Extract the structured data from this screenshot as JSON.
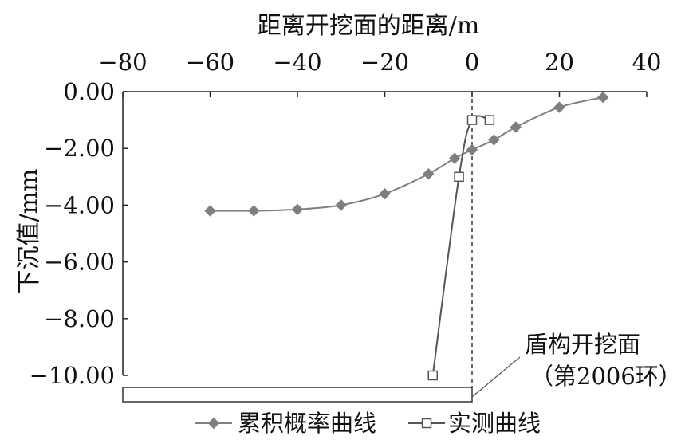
{
  "chart_data": {
    "type": "scatter",
    "xlabel": "距离开挖面的距离/m",
    "ylabel": "下沉值/mm",
    "xlim": [
      -80,
      40
    ],
    "ylim": [
      -10,
      0
    ],
    "x_ticks": [
      -80,
      -60,
      -40,
      -20,
      0,
      20,
      40
    ],
    "x_tick_labels": [
      "−80",
      "−60",
      "−40",
      "−20",
      "0",
      "20",
      "40"
    ],
    "y_ticks": [
      0,
      -2,
      -4,
      -6,
      -8,
      -10
    ],
    "y_tick_labels": [
      "0.00",
      "−2.00",
      "−4.00",
      "−6.00",
      "−8.00",
      "−10.00"
    ],
    "x_axis_position": "top",
    "grid": false,
    "legend_position": "bottom",
    "series": [
      {
        "name": "累积概率曲线",
        "marker": "diamond",
        "color": "#7f7f7f",
        "x": [
          -60,
          -50,
          -40,
          -30,
          -20,
          -10,
          -4,
          0,
          5,
          10,
          20,
          30
        ],
        "y": [
          -4.2,
          -4.2,
          -4.15,
          -4.0,
          -3.6,
          -2.9,
          -2.35,
          -2.05,
          -1.7,
          -1.25,
          -0.55,
          -0.2
        ]
      },
      {
        "name": "实测曲线",
        "marker": "square",
        "color": "#555555",
        "x": [
          -9,
          -3,
          0,
          4
        ],
        "y": [
          -10.0,
          -3.0,
          -1.0,
          -1.0
        ]
      }
    ],
    "annotation": {
      "line1": "盾构开挖面",
      "line2": "（第2006环）"
    },
    "reference_line_x": 0
  }
}
